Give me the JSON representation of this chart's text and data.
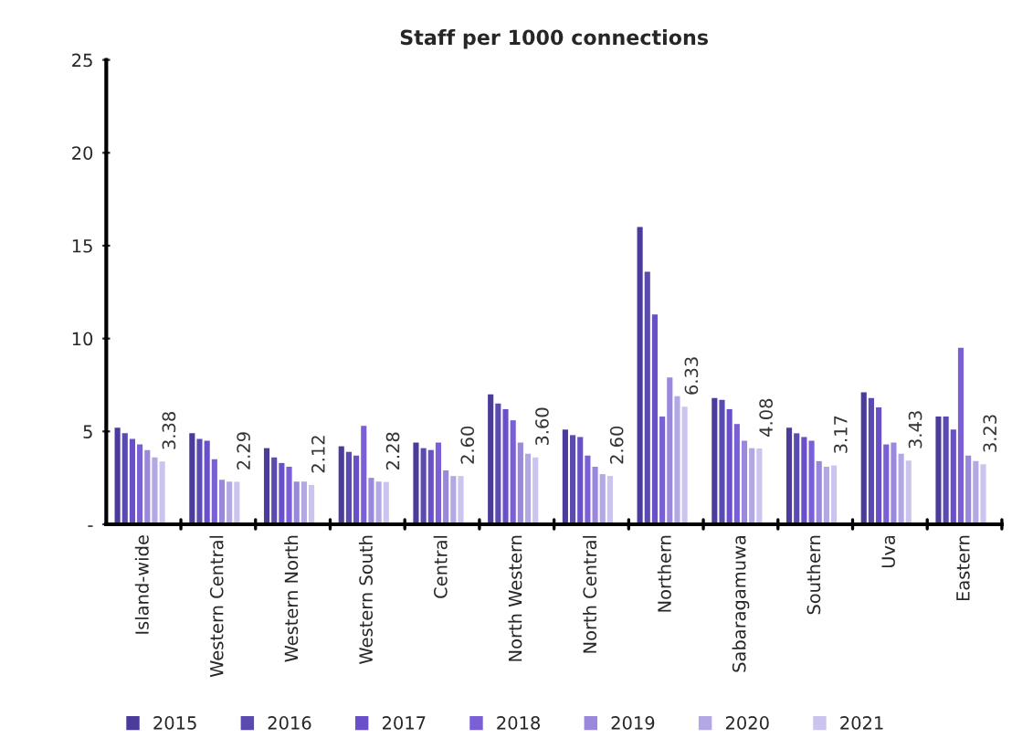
{
  "chart_data": {
    "type": "bar",
    "title": "Staff per 1000 connections",
    "categories": [
      "Island-wide",
      "Western Central",
      "Western North",
      "Western South",
      "Central",
      "North Western",
      "North Central",
      "Northern",
      "Sabaragamuwa",
      "Southern",
      "Uva",
      "Eastern"
    ],
    "series": [
      {
        "name": "2015",
        "color": "#4b3b9a",
        "values": [
          5.2,
          4.9,
          4.1,
          4.2,
          4.4,
          7.0,
          5.1,
          16.0,
          6.8,
          5.2,
          7.1,
          5.8
        ]
      },
      {
        "name": "2016",
        "color": "#5a4bb0",
        "values": [
          4.9,
          4.6,
          3.6,
          3.9,
          4.1,
          6.5,
          4.8,
          13.6,
          6.7,
          4.9,
          6.8,
          5.8
        ]
      },
      {
        "name": "2017",
        "color": "#6a50c8",
        "values": [
          4.6,
          4.5,
          3.3,
          3.7,
          4.0,
          6.2,
          4.7,
          11.3,
          6.2,
          4.7,
          6.3,
          5.1
        ]
      },
      {
        "name": "2018",
        "color": "#7b5fd6",
        "values": [
          4.3,
          3.5,
          3.1,
          5.3,
          4.4,
          5.6,
          3.7,
          5.8,
          5.4,
          4.5,
          4.3,
          9.5
        ]
      },
      {
        "name": "2019",
        "color": "#9a88dc",
        "values": [
          4.0,
          2.4,
          2.3,
          2.5,
          2.9,
          4.4,
          3.1,
          7.9,
          4.5,
          3.4,
          4.4,
          3.7
        ]
      },
      {
        "name": "2020",
        "color": "#b3a8e4",
        "values": [
          3.6,
          2.3,
          2.3,
          2.3,
          2.6,
          3.8,
          2.7,
          6.9,
          4.1,
          3.1,
          3.8,
          3.4
        ]
      },
      {
        "name": "2021",
        "color": "#cbc4ee",
        "values": [
          3.38,
          2.29,
          2.12,
          2.28,
          2.6,
          3.6,
          2.6,
          6.33,
          4.08,
          3.17,
          3.43,
          3.23
        ],
        "value_labels": [
          "3.38",
          "2.29",
          "2.12",
          "2.28",
          "2.60",
          "3.60",
          "2.60",
          "6.33",
          "4.08",
          "3.17",
          "3.43",
          "3.23"
        ]
      }
    ],
    "ylim": [
      0,
      25
    ],
    "yticks": [
      {
        "value": 0,
        "label": "-"
      },
      5,
      10,
      15,
      20,
      25
    ],
    "grid": false,
    "legend": "bottom"
  }
}
